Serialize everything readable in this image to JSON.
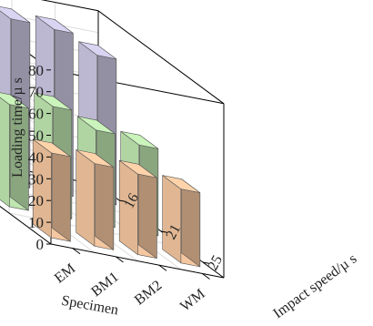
{
  "chart_data": {
    "type": "bar",
    "style": "3d",
    "specimens": [
      "EM",
      "BM1",
      "BM2",
      "WM"
    ],
    "impact_speeds": [
      "25",
      "21",
      "16"
    ],
    "series": [
      {
        "speed": "25",
        "values": [
          39,
          38,
          37,
          34
        ],
        "color": "#f5c7a0"
      },
      {
        "speed": "21",
        "values": [
          47,
          50,
          43,
          40
        ],
        "color": "#bfe6b0"
      },
      {
        "speed": "16",
        "values": [
          74,
          76,
          75,
          67
        ],
        "color": "#cdc8e4"
      }
    ],
    "zlim": [
      0,
      80
    ],
    "zticks": [
      "0",
      "10",
      "20",
      "30",
      "40",
      "50",
      "60",
      "70",
      "80"
    ],
    "zlabel": "Loading time/µ s",
    "xlabel": "Specimen",
    "ylabel": "Impact speed/µ s",
    "grid": true
  }
}
